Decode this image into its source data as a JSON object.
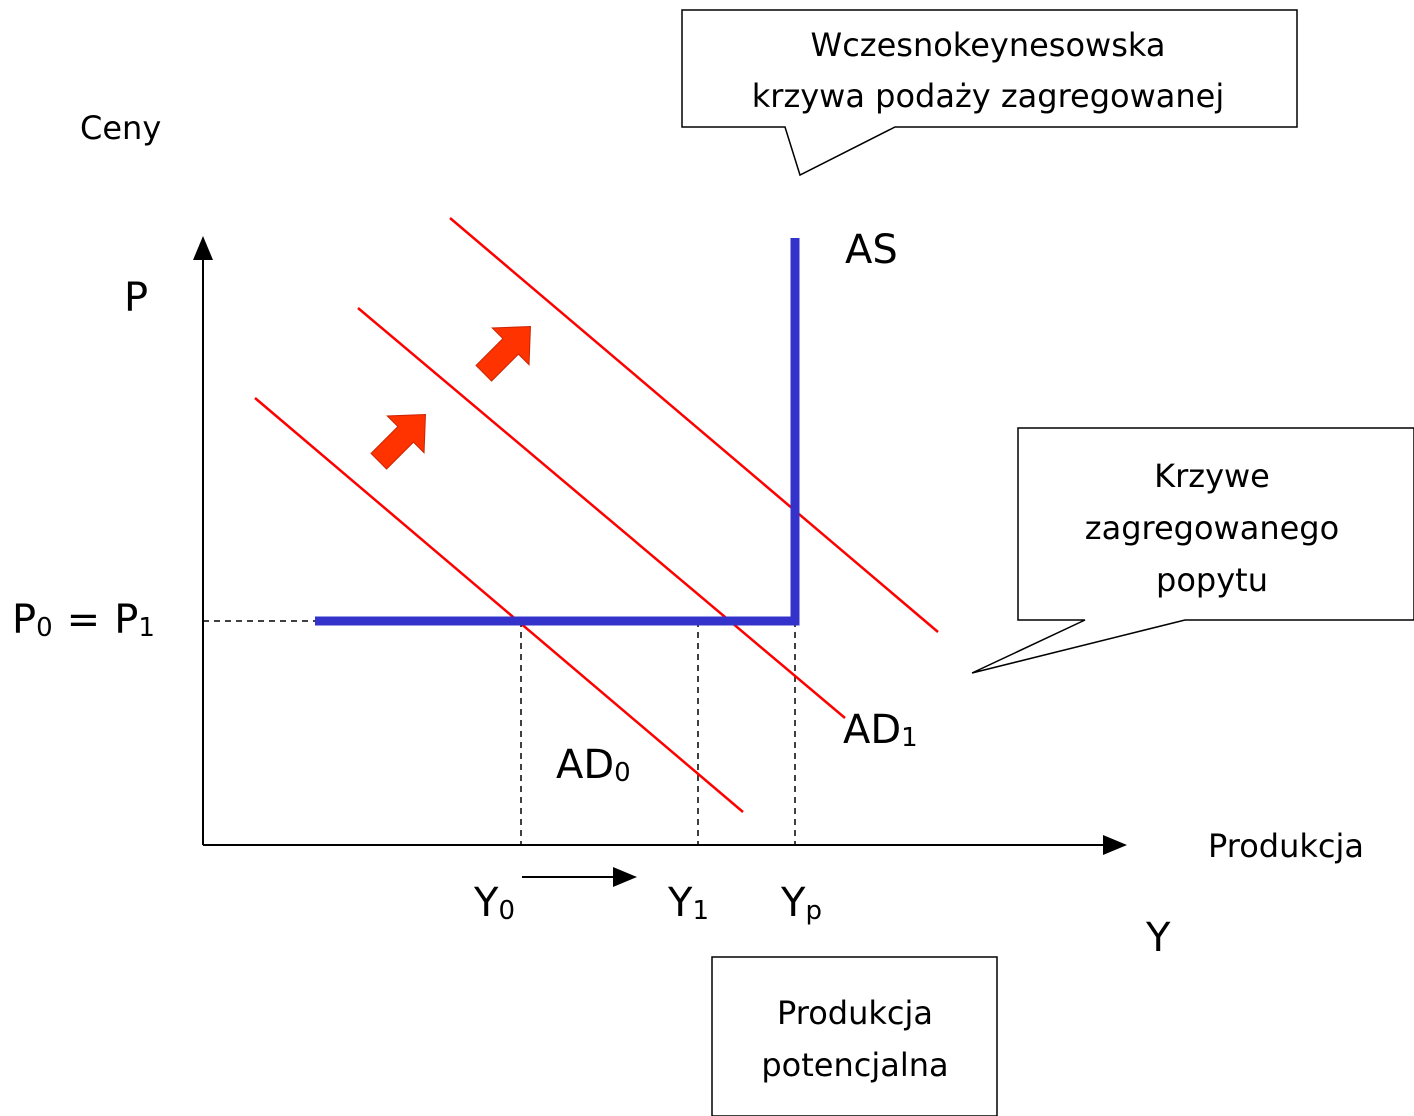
{
  "axis_labels": {
    "prices": "Ceny",
    "p": "P",
    "output": "Produkcja",
    "y": "Y"
  },
  "price_level": {
    "left": {
      "base": "P",
      "sub": "0"
    },
    "eq": "=",
    "right": {
      "base": "P",
      "sub": "1"
    }
  },
  "curves": {
    "as": "AS",
    "ad0": {
      "base": "AD",
      "sub": "0"
    },
    "ad1": {
      "base": "AD",
      "sub": "1"
    }
  },
  "output_levels": {
    "y0": {
      "base": "Y",
      "sub": "0"
    },
    "y1": {
      "base": "Y",
      "sub": "1"
    },
    "yp": {
      "base": "Y",
      "sub": "p"
    }
  },
  "callouts": {
    "supply": [
      "Wczesnokeynesowska",
      "krzywa podaży zagregowanej"
    ],
    "demand": [
      "Krzywe",
      "zagregowanego",
      "popytu"
    ],
    "potential": [
      "Produkcja",
      "potencjalna"
    ]
  }
}
